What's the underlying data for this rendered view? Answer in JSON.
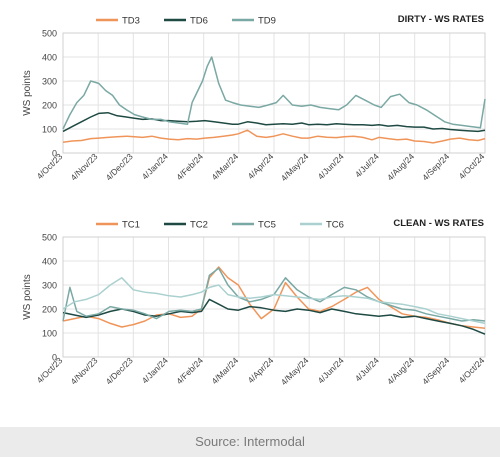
{
  "footer": {
    "source": "Source: Intermodal"
  },
  "chart_data": [
    {
      "type": "line",
      "title": "DIRTY - WS RATES",
      "ylabel": "WS points",
      "ylim": [
        0,
        500
      ],
      "yticks": [
        0,
        100,
        200,
        300,
        400,
        500
      ],
      "xlim": [
        "2023-10-04",
        "2024-10-04"
      ],
      "xticks": [
        "4/Oct/23",
        "4/Nov/23",
        "4/Dec/23",
        "4/Jan/24",
        "4/Feb/24",
        "4/Mar/24",
        "4/Apr/24",
        "4/May/24",
        "4/Jun/24",
        "4/Jul/24",
        "4/Aug/24",
        "4/Sep/24",
        "4/Oct/24"
      ],
      "grid": true,
      "legend": "top-left",
      "series": [
        {
          "name": "TD3",
          "color": "#f0955a",
          "x": [
            "2023-10-04",
            "2023-10-12",
            "2023-10-20",
            "2023-10-28",
            "2023-11-04",
            "2023-11-12",
            "2023-11-20",
            "2023-11-28",
            "2023-12-05",
            "2023-12-12",
            "2023-12-20",
            "2023-12-28",
            "2024-01-04",
            "2024-01-12",
            "2024-01-20",
            "2024-01-28",
            "2024-02-04",
            "2024-02-12",
            "2024-02-20",
            "2024-02-28",
            "2024-03-04",
            "2024-03-12",
            "2024-03-20",
            "2024-03-28",
            "2024-04-04",
            "2024-04-12",
            "2024-04-20",
            "2024-04-28",
            "2024-05-04",
            "2024-05-12",
            "2024-05-20",
            "2024-05-28",
            "2024-06-04",
            "2024-06-12",
            "2024-06-20",
            "2024-06-28",
            "2024-07-04",
            "2024-07-12",
            "2024-07-20",
            "2024-07-28",
            "2024-08-04",
            "2024-08-12",
            "2024-08-20",
            "2024-08-28",
            "2024-09-04",
            "2024-09-12",
            "2024-09-20",
            "2024-09-28",
            "2024-10-04"
          ],
          "y": [
            45,
            50,
            52,
            60,
            62,
            65,
            68,
            70,
            68,
            65,
            70,
            62,
            58,
            55,
            60,
            58,
            62,
            65,
            70,
            75,
            80,
            95,
            70,
            65,
            70,
            80,
            70,
            62,
            62,
            70,
            66,
            64,
            68,
            70,
            65,
            55,
            65,
            60,
            55,
            58,
            50,
            48,
            42,
            50,
            58,
            62,
            55,
            52,
            60
          ]
        },
        {
          "name": "TD6",
          "color": "#1f4a44",
          "x": [
            "2023-10-04",
            "2023-10-12",
            "2023-10-20",
            "2023-10-28",
            "2023-11-04",
            "2023-11-12",
            "2023-11-20",
            "2023-11-28",
            "2023-12-05",
            "2023-12-12",
            "2023-12-20",
            "2023-12-28",
            "2024-01-04",
            "2024-01-12",
            "2024-01-20",
            "2024-01-28",
            "2024-02-04",
            "2024-02-12",
            "2024-02-20",
            "2024-02-28",
            "2024-03-04",
            "2024-03-12",
            "2024-03-20",
            "2024-03-28",
            "2024-04-04",
            "2024-04-12",
            "2024-04-20",
            "2024-04-28",
            "2024-05-04",
            "2024-05-12",
            "2024-05-20",
            "2024-05-28",
            "2024-06-04",
            "2024-06-12",
            "2024-06-20",
            "2024-06-28",
            "2024-07-04",
            "2024-07-12",
            "2024-07-20",
            "2024-07-28",
            "2024-08-04",
            "2024-08-12",
            "2024-08-20",
            "2024-08-28",
            "2024-09-04",
            "2024-09-12",
            "2024-09-20",
            "2024-09-28",
            "2024-10-04"
          ],
          "y": [
            90,
            110,
            130,
            150,
            165,
            168,
            155,
            150,
            145,
            140,
            142,
            135,
            135,
            132,
            130,
            132,
            135,
            130,
            125,
            120,
            120,
            130,
            125,
            118,
            120,
            122,
            120,
            125,
            118,
            120,
            118,
            122,
            120,
            118,
            118,
            115,
            118,
            112,
            115,
            110,
            108,
            108,
            100,
            102,
            98,
            95,
            92,
            90,
            95
          ]
        },
        {
          "name": "TD9",
          "color": "#7aa8a4",
          "x": [
            "2023-10-04",
            "2023-10-10",
            "2023-10-16",
            "2023-10-22",
            "2023-10-28",
            "2023-11-04",
            "2023-11-10",
            "2023-11-16",
            "2023-11-22",
            "2023-11-28",
            "2023-12-05",
            "2023-12-12",
            "2023-12-20",
            "2023-12-28",
            "2024-01-04",
            "2024-01-12",
            "2024-01-20",
            "2024-01-24",
            "2024-01-28",
            "2024-02-02",
            "2024-02-06",
            "2024-02-10",
            "2024-02-16",
            "2024-02-22",
            "2024-02-28",
            "2024-03-06",
            "2024-03-14",
            "2024-03-22",
            "2024-03-30",
            "2024-04-06",
            "2024-04-12",
            "2024-04-20",
            "2024-04-28",
            "2024-05-06",
            "2024-05-14",
            "2024-05-22",
            "2024-05-30",
            "2024-06-06",
            "2024-06-14",
            "2024-06-22",
            "2024-06-30",
            "2024-07-06",
            "2024-07-14",
            "2024-07-22",
            "2024-07-30",
            "2024-08-06",
            "2024-08-14",
            "2024-08-22",
            "2024-08-30",
            "2024-09-06",
            "2024-09-14",
            "2024-09-22",
            "2024-09-30",
            "2024-10-04"
          ],
          "y": [
            100,
            160,
            210,
            240,
            300,
            290,
            260,
            240,
            200,
            180,
            160,
            150,
            140,
            140,
            130,
            125,
            120,
            210,
            250,
            300,
            360,
            400,
            290,
            220,
            210,
            200,
            195,
            190,
            200,
            210,
            240,
            200,
            195,
            200,
            190,
            185,
            180,
            200,
            240,
            220,
            200,
            190,
            235,
            245,
            210,
            200,
            180,
            155,
            130,
            120,
            115,
            110,
            105,
            225
          ]
        }
      ]
    },
    {
      "type": "line",
      "title": "CLEAN - WS RATES",
      "ylabel": "WS points",
      "ylim": [
        0,
        500
      ],
      "yticks": [
        0,
        100,
        200,
        300,
        400,
        500
      ],
      "xlim": [
        "2023-10-04",
        "2024-10-04"
      ],
      "xticks": [
        "4/Oct/23",
        "4/Nov/23",
        "4/Dec/23",
        "4/Jan/24",
        "4/Feb/24",
        "4/Mar/24",
        "4/Apr/24",
        "4/May/24",
        "4/Jun/24",
        "4/Jul/24",
        "4/Aug/24",
        "4/Sep/24",
        "4/Oct/24"
      ],
      "grid": true,
      "legend": "top-left",
      "series": [
        {
          "name": "TC1",
          "color": "#f0955a",
          "x": [
            "2023-10-04",
            "2023-10-14",
            "2023-10-24",
            "2023-11-04",
            "2023-11-14",
            "2023-11-24",
            "2023-12-04",
            "2023-12-14",
            "2023-12-24",
            "2024-01-04",
            "2024-01-14",
            "2024-01-24",
            "2024-02-01",
            "2024-02-08",
            "2024-02-16",
            "2024-02-24",
            "2024-03-04",
            "2024-03-14",
            "2024-03-24",
            "2024-04-04",
            "2024-04-14",
            "2024-04-24",
            "2024-05-04",
            "2024-05-14",
            "2024-05-24",
            "2024-06-04",
            "2024-06-14",
            "2024-06-24",
            "2024-07-04",
            "2024-07-14",
            "2024-07-24",
            "2024-08-04",
            "2024-08-14",
            "2024-08-24",
            "2024-09-04",
            "2024-09-14",
            "2024-09-24",
            "2024-10-04"
          ],
          "y": [
            150,
            160,
            170,
            160,
            140,
            125,
            135,
            150,
            175,
            180,
            165,
            170,
            200,
            330,
            375,
            330,
            300,
            220,
            160,
            200,
            310,
            250,
            200,
            190,
            210,
            240,
            270,
            290,
            240,
            210,
            180,
            170,
            165,
            155,
            140,
            130,
            125,
            120
          ]
        },
        {
          "name": "TC2",
          "color": "#1f4a44",
          "x": [
            "2023-10-04",
            "2023-10-14",
            "2023-10-24",
            "2023-11-04",
            "2023-11-14",
            "2023-11-24",
            "2023-12-04",
            "2023-12-14",
            "2023-12-24",
            "2024-01-04",
            "2024-01-14",
            "2024-01-24",
            "2024-02-01",
            "2024-02-08",
            "2024-02-16",
            "2024-02-24",
            "2024-03-04",
            "2024-03-14",
            "2024-03-24",
            "2024-04-04",
            "2024-04-14",
            "2024-04-24",
            "2024-05-04",
            "2024-05-14",
            "2024-05-24",
            "2024-06-04",
            "2024-06-14",
            "2024-06-24",
            "2024-07-04",
            "2024-07-14",
            "2024-07-24",
            "2024-08-04",
            "2024-08-14",
            "2024-08-24",
            "2024-09-04",
            "2024-09-14",
            "2024-09-24",
            "2024-10-04"
          ],
          "y": [
            185,
            175,
            165,
            175,
            190,
            200,
            190,
            175,
            170,
            180,
            190,
            185,
            190,
            240,
            220,
            200,
            195,
            210,
            205,
            195,
            190,
            200,
            195,
            185,
            200,
            190,
            180,
            175,
            170,
            175,
            165,
            170,
            160,
            150,
            140,
            130,
            115,
            95
          ]
        },
        {
          "name": "TC5",
          "color": "#7aa8a4",
          "x": [
            "2023-10-04",
            "2023-10-10",
            "2023-10-16",
            "2023-10-24",
            "2023-11-04",
            "2023-11-14",
            "2023-11-24",
            "2023-12-04",
            "2023-12-14",
            "2023-12-24",
            "2024-01-04",
            "2024-01-14",
            "2024-01-24",
            "2024-02-01",
            "2024-02-08",
            "2024-02-16",
            "2024-02-24",
            "2024-03-04",
            "2024-03-14",
            "2024-03-24",
            "2024-04-04",
            "2024-04-14",
            "2024-04-24",
            "2024-05-04",
            "2024-05-14",
            "2024-05-24",
            "2024-06-04",
            "2024-06-14",
            "2024-06-24",
            "2024-07-04",
            "2024-07-14",
            "2024-07-24",
            "2024-08-04",
            "2024-08-14",
            "2024-08-24",
            "2024-09-04",
            "2024-09-14",
            "2024-09-24",
            "2024-10-04"
          ],
          "y": [
            150,
            290,
            190,
            170,
            180,
            210,
            200,
            195,
            180,
            160,
            190,
            195,
            190,
            200,
            340,
            370,
            300,
            250,
            230,
            240,
            260,
            330,
            280,
            250,
            230,
            260,
            290,
            280,
            250,
            230,
            215,
            200,
            195,
            180,
            170,
            160,
            150,
            155,
            150
          ]
        },
        {
          "name": "TC6",
          "color": "#aad1cf",
          "x": [
            "2023-10-04",
            "2023-10-14",
            "2023-10-24",
            "2023-11-04",
            "2023-11-14",
            "2023-11-24",
            "2023-12-04",
            "2023-12-14",
            "2023-12-24",
            "2024-01-04",
            "2024-01-14",
            "2024-01-24",
            "2024-02-01",
            "2024-02-08",
            "2024-02-16",
            "2024-02-24",
            "2024-03-04",
            "2024-03-14",
            "2024-03-24",
            "2024-04-04",
            "2024-04-14",
            "2024-04-24",
            "2024-05-04",
            "2024-05-14",
            "2024-05-24",
            "2024-06-04",
            "2024-06-14",
            "2024-06-24",
            "2024-07-04",
            "2024-07-14",
            "2024-07-24",
            "2024-08-04",
            "2024-08-14",
            "2024-08-24",
            "2024-09-04",
            "2024-09-14",
            "2024-09-24",
            "2024-10-04"
          ],
          "y": [
            200,
            230,
            240,
            260,
            300,
            330,
            280,
            270,
            265,
            255,
            250,
            260,
            270,
            290,
            300,
            260,
            250,
            245,
            250,
            260,
            255,
            250,
            245,
            240,
            250,
            255,
            250,
            245,
            230,
            225,
            220,
            210,
            200,
            180,
            170,
            160,
            150,
            140
          ]
        }
      ]
    }
  ]
}
